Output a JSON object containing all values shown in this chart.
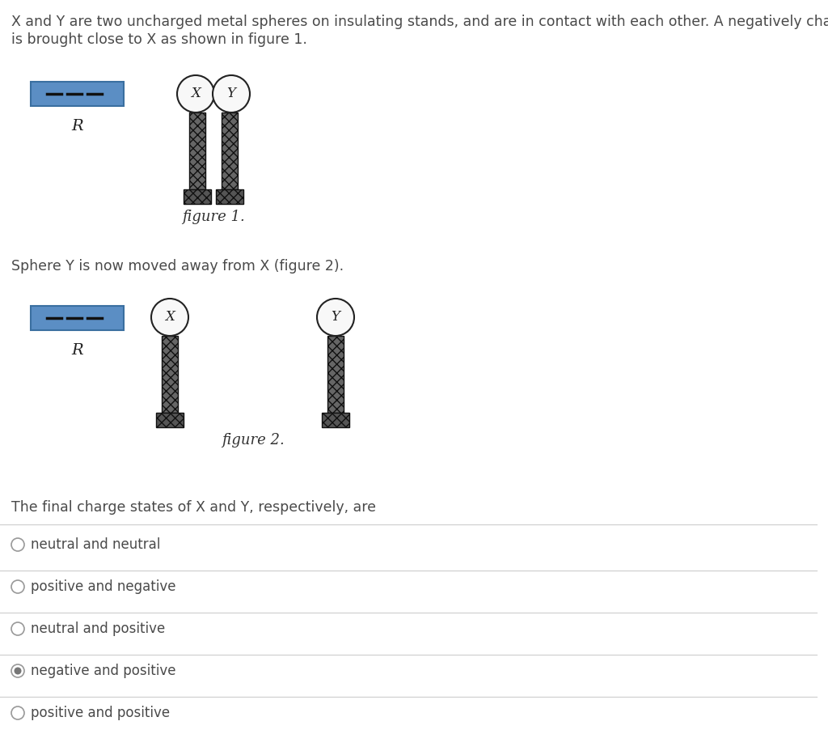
{
  "background_color": "#ffffff",
  "text_color": "#4a4a4a",
  "paragraph1_line1": "X and Y are two uncharged metal spheres on insulating stands, and are in contact with each other. A negatively charged rod R",
  "paragraph1_line2": "is brought close to X as shown in figure 1.",
  "paragraph2": "Sphere Y is now moved away from X (figure 2).",
  "paragraph3": "The final charge states of X and Y, respectively, are",
  "figure1_caption": "figure 1.",
  "figure2_caption": "figure 2.",
  "rod_color": "#5b8ec4",
  "rod_border_color": "#3a6fa0",
  "dash_color": "#111111",
  "sphere_color": "#f8f8f8",
  "sphere_edge_color": "#222222",
  "stand_color": "#444444",
  "stand_edge_color": "#111111",
  "options": [
    {
      "text": "neutral and neutral",
      "selected": false
    },
    {
      "text": "positive and negative",
      "selected": false
    },
    {
      "text": "neutral and positive",
      "selected": false
    },
    {
      "text": "negative and positive",
      "selected": true
    },
    {
      "text": "positive and positive",
      "selected": false
    }
  ],
  "option_line_color": "#d0d0d0",
  "radio_fill_selected": "#777777",
  "radio_fill_unselected": "#ffffff",
  "radio_edge_color": "#999999",
  "font_size_body": 12.5,
  "font_size_caption": 13,
  "font_size_options": 12
}
